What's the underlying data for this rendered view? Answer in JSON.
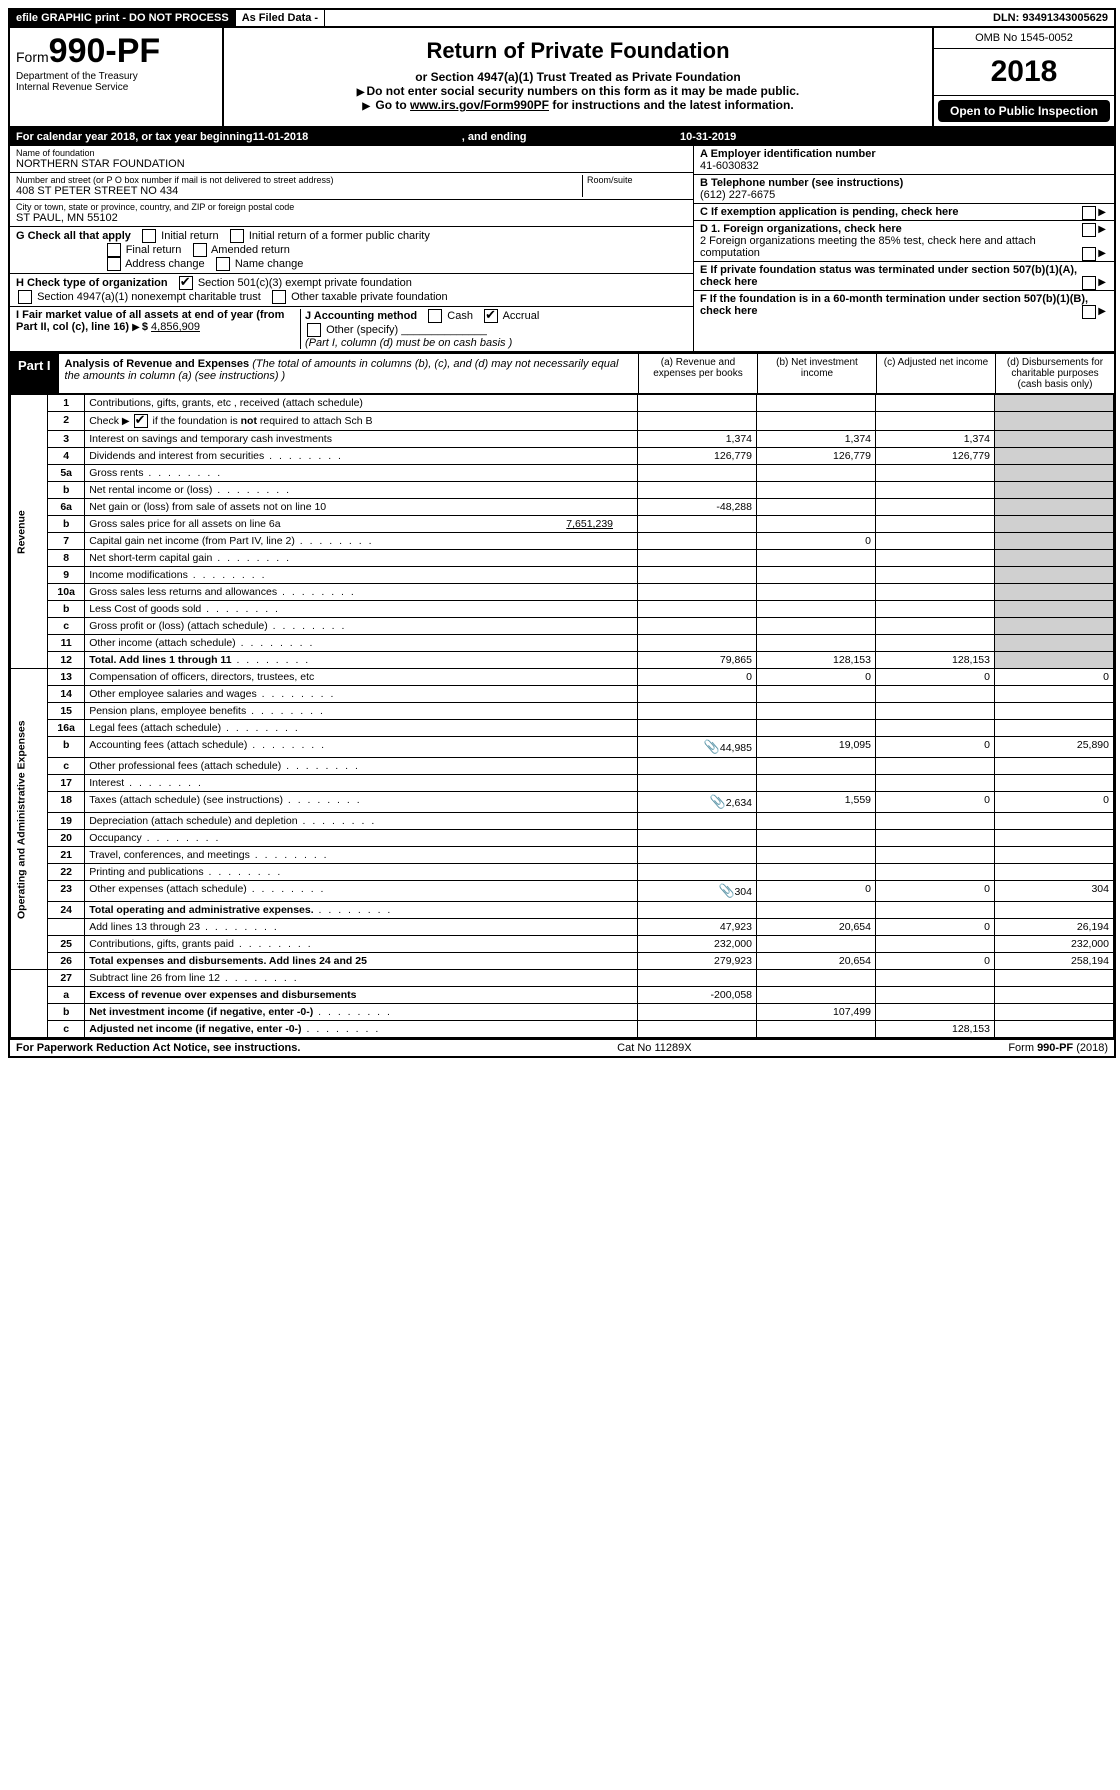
{
  "topbar": {
    "efile": "efile GRAPHIC print - DO NOT PROCESS",
    "asfiled": "As Filed Data -",
    "dln_label": "DLN:",
    "dln": "93491343005629"
  },
  "header": {
    "form_prefix": "Form",
    "form_no": "990-PF",
    "dept": "Department of the Treasury",
    "irs": "Internal Revenue Service",
    "title": "Return of Private Foundation",
    "subtitle": "or Section 4947(a)(1) Trust Treated as Private Foundation",
    "warn1": "Do not enter social security numbers on this form as it may be made public.",
    "warn2_pre": "Go to ",
    "warn2_link": "www.irs.gov/Form990PF",
    "warn2_post": " for instructions and the latest information.",
    "omb": "OMB No 1545-0052",
    "year": "2018",
    "inspect": "Open to Public Inspection"
  },
  "cal": {
    "pre": "For calendar year 2018, or tax year beginning ",
    "begin": "11-01-2018",
    "mid": ", and ending ",
    "end": "10-31-2019"
  },
  "entity": {
    "name_label": "Name of foundation",
    "name": "NORTHERN STAR FOUNDATION",
    "addr_label": "Number and street (or P O  box number if mail is not delivered to street address)",
    "addr": "408 ST PETER STREET NO 434",
    "room_label": "Room/suite",
    "city_label": "City or town, state or province, country, and ZIP or foreign postal code",
    "city": "ST PAUL, MN  55102",
    "ein_label": "A Employer identification number",
    "ein": "41-6030832",
    "phone_label": "B Telephone number (see instructions)",
    "phone": "(612) 227-6675",
    "c_label": "C If exemption application is pending, check here"
  },
  "g": {
    "title": "G Check all that apply",
    "o1": "Initial return",
    "o2": "Initial return of a former public charity",
    "o3": "Final return",
    "o4": "Amended return",
    "o5": "Address change",
    "o6": "Name change"
  },
  "h": {
    "title": "H Check type of organization",
    "o1": "Section 501(c)(3) exempt private foundation",
    "o2": "Section 4947(a)(1) nonexempt charitable trust",
    "o3": "Other taxable private foundation"
  },
  "d": {
    "d1": "D 1. Foreign organizations, check here",
    "d2": "2  Foreign organizations meeting the 85% test, check here and attach computation",
    "e": "E  If private foundation status was terminated under section 507(b)(1)(A), check here",
    "f": "F  If the foundation is in a 60-month termination under section 507(b)(1)(B), check here"
  },
  "i": {
    "title": "I Fair market value of all assets at end of year (from Part II, col  (c), line 16) ",
    "val_pre": "$",
    "val": "4,856,909"
  },
  "j": {
    "title": "J Accounting method",
    "cash": "Cash",
    "accrual": "Accrual",
    "other": "Other (specify)",
    "note": "(Part I, column (d) must be on cash basis )"
  },
  "part1": {
    "tag": "Part I",
    "title": "Analysis of Revenue and Expenses",
    "desc": "(The total of amounts in columns (b), (c), and (d) may not necessarily equal the amounts in column (a) (see instructions) )",
    "col_a": "(a)   Revenue and expenses per books",
    "col_b": "(b)  Net investment income",
    "col_c": "(c)  Adjusted net income",
    "col_d": "(d)  Disbursements for charitable purposes (cash basis only)"
  },
  "side_rev": "Revenue",
  "side_exp": "Operating and Administrative Expenses",
  "rows": [
    {
      "n": "1",
      "t": "Contributions, gifts, grants, etc , received (attach schedule)"
    },
    {
      "n": "2",
      "t_pre": "Check ",
      "t_post": " if the foundation is ",
      "bold": "not",
      "t_end": " required to attach Sch  B"
    },
    {
      "n": "3",
      "t": "Interest on savings and temporary cash investments",
      "a": "1,374",
      "b": "1,374",
      "c": "1,374"
    },
    {
      "n": "4",
      "t": "Dividends and interest from securities",
      "a": "126,779",
      "b": "126,779",
      "c": "126,779"
    },
    {
      "n": "5a",
      "t": "Gross rents"
    },
    {
      "n": "b",
      "t": "Net rental income or (loss)"
    },
    {
      "n": "6a",
      "t": "Net gain or (loss) from sale of assets not on line 10",
      "a": "-48,288"
    },
    {
      "n": "b",
      "t_pre": "Gross sales price for all assets on line 6a",
      "u": "7,651,239"
    },
    {
      "n": "7",
      "t": "Capital gain net income (from Part IV, line 2)",
      "b": "0"
    },
    {
      "n": "8",
      "t": "Net short-term capital gain"
    },
    {
      "n": "9",
      "t": "Income modifications"
    },
    {
      "n": "10a",
      "t": "Gross sales less returns and allowances"
    },
    {
      "n": "b",
      "t": "Less  Cost of goods sold"
    },
    {
      "n": "c",
      "t": "Gross profit or (loss) (attach schedule)"
    },
    {
      "n": "11",
      "t": "Other income (attach schedule)"
    },
    {
      "n": "12",
      "t": "Total. Add lines 1 through 11",
      "bold_all": true,
      "a": "79,865",
      "b": "128,153",
      "c": "128,153"
    },
    {
      "n": "13",
      "t": "Compensation of officers, directors, trustees, etc",
      "a": "0",
      "b": "0",
      "c": "0",
      "d": "0"
    },
    {
      "n": "14",
      "t": "Other employee salaries and wages"
    },
    {
      "n": "15",
      "t": "Pension plans, employee benefits"
    },
    {
      "n": "16a",
      "t": "Legal fees (attach schedule)"
    },
    {
      "n": "b",
      "t": "Accounting fees (attach schedule)",
      "att": true,
      "a": "44,985",
      "b": "19,095",
      "c": "0",
      "d": "25,890"
    },
    {
      "n": "c",
      "t": "Other professional fees (attach schedule)"
    },
    {
      "n": "17",
      "t": "Interest"
    },
    {
      "n": "18",
      "t": "Taxes (attach schedule) (see instructions)",
      "att": true,
      "a": "2,634",
      "b": "1,559",
      "c": "0",
      "d": "0"
    },
    {
      "n": "19",
      "t": "Depreciation (attach schedule) and depletion"
    },
    {
      "n": "20",
      "t": "Occupancy"
    },
    {
      "n": "21",
      "t": "Travel, conferences, and meetings"
    },
    {
      "n": "22",
      "t": "Printing and publications"
    },
    {
      "n": "23",
      "t": "Other expenses (attach schedule)",
      "att": true,
      "a": "304",
      "b": "0",
      "c": "0",
      "d": "304"
    },
    {
      "n": "24",
      "t": "Total operating and administrative expenses.",
      "bold_all": true
    },
    {
      "n": "",
      "t": "Add lines 13 through 23",
      "a": "47,923",
      "b": "20,654",
      "c": "0",
      "d": "26,194"
    },
    {
      "n": "25",
      "t": "Contributions, gifts, grants paid",
      "a": "232,000",
      "d": "232,000"
    },
    {
      "n": "26",
      "t": "Total expenses and disbursements. Add lines 24 and 25",
      "bold_all": true,
      "a": "279,923",
      "b": "20,654",
      "c": "0",
      "d": "258,194"
    },
    {
      "n": "27",
      "t": "Subtract line 26 from line 12"
    },
    {
      "n": "a",
      "t": "Excess of revenue over expenses and disbursements",
      "bold_all": true,
      "a": "-200,058"
    },
    {
      "n": "b",
      "t": "Net investment income (if negative, enter -0-)",
      "bold_all": true,
      "b": "107,499"
    },
    {
      "n": "c",
      "t": "Adjusted net income (if negative, enter -0-)",
      "bold_all": true,
      "c": "128,153"
    }
  ],
  "footer": {
    "left": "For Paperwork Reduction Act Notice, see instructions.",
    "mid": "Cat  No  11289X",
    "right": "Form 990-PF (2018)"
  }
}
